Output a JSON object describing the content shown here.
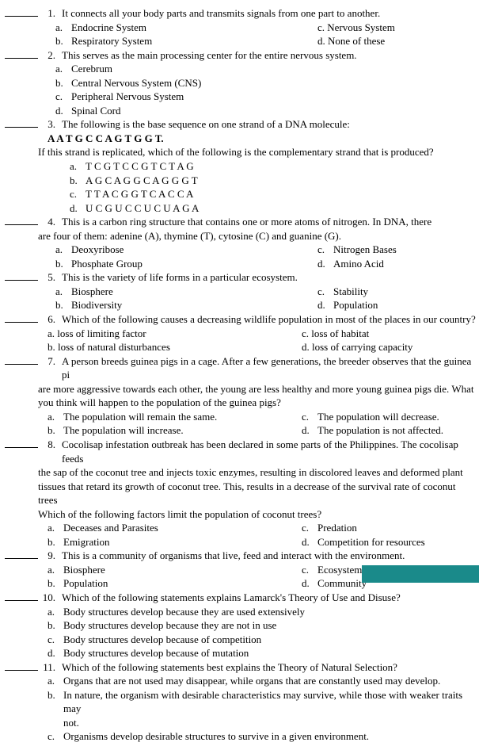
{
  "q1": {
    "num": "1.",
    "text": "It connects all your body parts and transmits signals from one part to another.",
    "a": "Endocrine System",
    "b": "Respiratory System",
    "c": "c. Nervous System",
    "d": "d. None of these"
  },
  "q2": {
    "num": "2.",
    "text": "This serves as the main processing center for the entire nervous system.",
    "a": "Cerebrum",
    "b": "Central Nervous System (CNS)",
    "c": "Peripheral Nervous System",
    "d": "Spinal Cord"
  },
  "q3": {
    "num": "3.",
    "text": "The following is the base sequence on one strand of a DNA molecule:",
    "seq": "A A T G C  C  A G T G G T.",
    "sub": "If this strand is replicated, which of the following is the complementary strand that is produced?",
    "a": "T C G T C C G T C T A G",
    "b": "A G C A G G C A G G G T",
    "c": "T T A C G G T C A C C A",
    "d": "U C G U C C U C U A G A"
  },
  "q4": {
    "num": "4.",
    "text": "This is a carbon ring structure that contains one or more atoms of nitrogen. In DNA, there",
    "text2": "are four of them: adenine (A), thymine (T), cytosine (C) and guanine (G).",
    "a": "Deoxyribose",
    "b": "Phosphate Group",
    "c": "Nitrogen Bases",
    "d": "Amino Acid"
  },
  "q5": {
    "num": "5.",
    "text": "This is the variety of life forms in a particular ecosystem.",
    "a": "Biosphere",
    "b": "Biodiversity",
    "c": "Stability",
    "d": "Population"
  },
  "q6": {
    "num": "6.",
    "text": "Which of the following causes a decreasing wildlife population in most of the places in our country?",
    "a": "a. loss of limiting factor",
    "b": "b. loss of natural disturbances",
    "c": "c. loss of habitat",
    "d": "d. loss of carrying capacity"
  },
  "q7": {
    "num": "7.",
    "text": "A person breeds guinea pigs in a cage. After a few generations, the breeder observes that the guinea pi",
    "text2": "are more aggressive towards each other, the young are less healthy and more young guinea pigs die.  What",
    "text3": "you think will happen to the population of the guinea pigs?",
    "a": "The population will remain the same.",
    "b": "The population will increase.",
    "c": "The population will decrease.",
    "d": "The population is not affected."
  },
  "q8": {
    "num": "8.",
    "text": "Cocolisap infestation outbreak has been declared in some parts of the Philippines.  The cocolisap feeds",
    "text2": "the sap of the coconut tree and injects toxic enzymes, resulting in discolored leaves and deformed plant",
    "text3": "tissues that retard its growth of coconut tree. This, results in a decrease of the survival rate of coconut trees",
    "text4": "Which of the following factors limit the population of coconut trees?",
    "a": "Deceases and Parasites",
    "b": "Emigration",
    "c": "Predation",
    "d": "Competition for resources"
  },
  "q9": {
    "num": "9.",
    "text": "This is a community of organisms that live, feed and interact with the environment.",
    "a": "Biosphere",
    "b": "Population",
    "c": "Ecosystem",
    "d": "Community"
  },
  "q10": {
    "num": "10.",
    "text": "Which of the following statements explains Lamarck's Theory of Use and Disuse?",
    "a": "Body structures develop because they are used extensively",
    "b": "Body structures develop because they are not in use",
    "c": "Body structures develop because of competition",
    "d": "Body structures develop because of mutation"
  },
  "q11": {
    "num": "11.",
    "text": "Which of the following statements best explains the Theory of Natural   Selection?",
    "a": "Organs that are not used may disappear, while organs that are constantly used may develop.",
    "b": "In nature, the organism with desirable characteristics may survive, while those with weaker traits may",
    "b2": "not.",
    "c": "Organisms develop desirable structures to survive in a given environment."
  },
  "letters": {
    "a": "a.",
    "b": "b.",
    "c": "c.",
    "d": "d."
  }
}
